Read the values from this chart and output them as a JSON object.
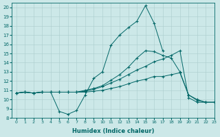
{
  "xlabel": "Humidex (Indice chaleur)",
  "bg_color": "#cce8e8",
  "line_color": "#006666",
  "grid_color": "#aacccc",
  "xlim": [
    -0.5,
    23
  ],
  "ylim": [
    8,
    20.5
  ],
  "yticks": [
    8,
    9,
    10,
    11,
    12,
    13,
    14,
    15,
    16,
    17,
    18,
    19,
    20
  ],
  "xticks": [
    0,
    1,
    2,
    3,
    4,
    5,
    6,
    7,
    8,
    9,
    10,
    11,
    12,
    13,
    14,
    15,
    16,
    17,
    18,
    19,
    20,
    21,
    22,
    23
  ],
  "series": [
    {
      "x": [
        0,
        1,
        2,
        3,
        4,
        5,
        6,
        7,
        8,
        9,
        10,
        11,
        12,
        13,
        14,
        15,
        16,
        17
      ],
      "y": [
        10.7,
        10.8,
        10.7,
        10.8,
        10.8,
        8.7,
        8.4,
        8.8,
        10.5,
        12.3,
        13.0,
        15.9,
        17.0,
        17.8,
        18.5,
        20.2,
        18.3,
        15.3
      ]
    },
    {
      "x": [
        0,
        1,
        2,
        3,
        4,
        5,
        6,
        7,
        8,
        9,
        10,
        11,
        12,
        13,
        14,
        15,
        16,
        17,
        18,
        19,
        20,
        21,
        22,
        23
      ],
      "y": [
        10.7,
        10.8,
        10.7,
        10.8,
        10.8,
        10.8,
        10.8,
        10.8,
        10.9,
        11.1,
        11.4,
        11.8,
        12.2,
        12.7,
        13.2,
        13.6,
        14.1,
        14.4,
        14.8,
        15.3,
        10.2,
        9.7,
        9.7,
        9.7
      ]
    },
    {
      "x": [
        0,
        1,
        2,
        3,
        4,
        5,
        6,
        7,
        8,
        9,
        10,
        11,
        12,
        13,
        14,
        15,
        16,
        17,
        18,
        19,
        20,
        21,
        22,
        23
      ],
      "y": [
        10.7,
        10.8,
        10.7,
        10.8,
        10.8,
        10.8,
        10.8,
        10.8,
        10.8,
        10.9,
        11.0,
        11.2,
        11.4,
        11.7,
        12.0,
        12.2,
        12.5,
        12.5,
        12.7,
        12.9,
        10.5,
        9.9,
        9.7,
        9.7
      ]
    },
    {
      "x": [
        0,
        1,
        2,
        3,
        4,
        5,
        6,
        7,
        8,
        9,
        10,
        11,
        12,
        13,
        14,
        15,
        16,
        17,
        18,
        19,
        20,
        21,
        22,
        23
      ],
      "y": [
        10.7,
        10.8,
        10.7,
        10.8,
        10.8,
        10.8,
        10.8,
        10.8,
        11.0,
        11.2,
        11.5,
        12.1,
        12.7,
        13.5,
        14.5,
        15.3,
        15.2,
        14.8,
        14.5,
        13.0,
        10.5,
        10.0,
        9.7,
        9.7
      ]
    }
  ]
}
